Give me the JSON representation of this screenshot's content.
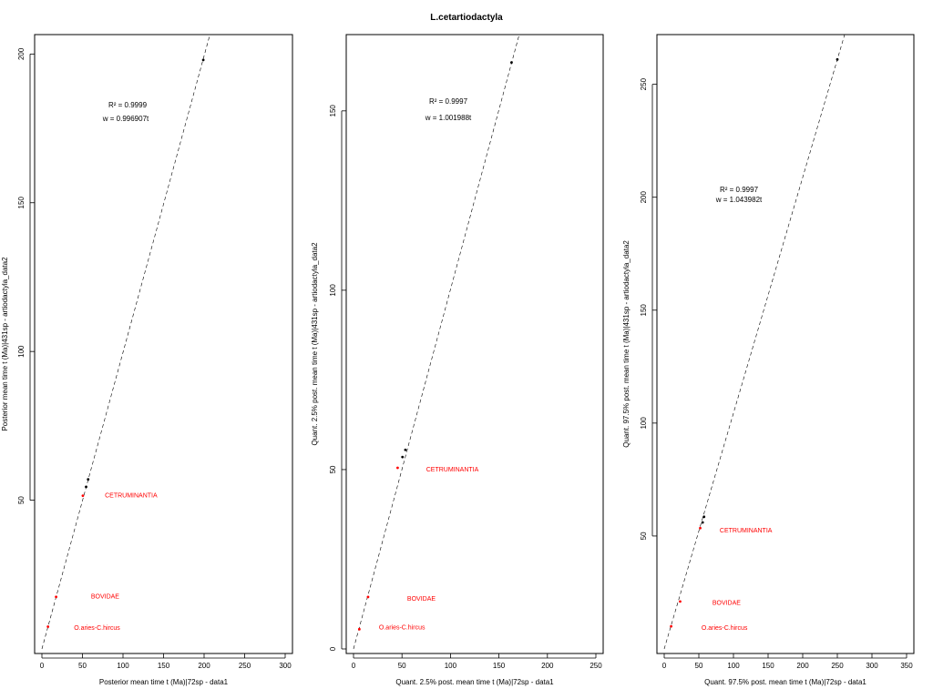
{
  "title": "L.cetartiodactyla",
  "chart_data": [
    {
      "type": "scatter",
      "xlabel": "Posterior mean time t (Ma)|72sp - data1",
      "ylabel": "Posterior mean time t (Ma)|431sp - artiodactyla_data2",
      "xlim": [
        0,
        300
      ],
      "ylim": [
        0,
        205
      ],
      "x_ticks": [
        0,
        50,
        100,
        150,
        200,
        250,
        300
      ],
      "y_ticks": [
        50,
        100,
        150,
        200
      ],
      "r2_label": "R² = 0.9999",
      "w_label": "w = 0.996907t",
      "slope": 0.996907,
      "points": [
        {
          "x": 7.5,
          "y": 7.5,
          "color": "#ff0000"
        },
        {
          "x": 17.5,
          "y": 17.5,
          "color": "#ff0000"
        },
        {
          "x": 50.5,
          "y": 51.5,
          "color": "#ff0000"
        },
        {
          "x": 54.5,
          "y": 54.5,
          "color": "#000000"
        },
        {
          "x": 57.0,
          "y": 57.0,
          "color": "#000000"
        },
        {
          "x": 199.0,
          "y": 198.0,
          "color": "#000000"
        }
      ],
      "annotations": [
        {
          "text": "CETRUMINANTIA",
          "x": 110,
          "y": 51,
          "color": "#ff0000"
        },
        {
          "text": "BOVIDAE",
          "x": 78,
          "y": 17,
          "color": "#ff0000"
        },
        {
          "text": "O.aries-C.hircus",
          "x": 68,
          "y": 6.5,
          "color": "#ff0000"
        }
      ]
    },
    {
      "type": "scatter",
      "xlabel": "Quant. 2.5% post. mean time t (Ma)|72sp - data1",
      "ylabel": "Quant. 2.5% post. mean time t (Ma)|431sp - artiodactyla_data2",
      "xlim": [
        0,
        250
      ],
      "ylim": [
        0,
        170
      ],
      "x_ticks": [
        0,
        50,
        100,
        150,
        200,
        250
      ],
      "y_ticks": [
        0,
        50,
        100,
        150
      ],
      "r2_label": "R² = 0.9997",
      "w_label": "w = 1.001988t",
      "slope": 1.001988,
      "points": [
        {
          "x": 6.0,
          "y": 5.5,
          "color": "#ff0000"
        },
        {
          "x": 15.0,
          "y": 14.5,
          "color": "#ff0000"
        },
        {
          "x": 45.5,
          "y": 50.5,
          "color": "#ff0000"
        },
        {
          "x": 50.5,
          "y": 53.5,
          "color": "#000000"
        },
        {
          "x": 53.5,
          "y": 55.5,
          "color": "#000000"
        },
        {
          "x": 163.0,
          "y": 163.5,
          "color": "#000000"
        }
      ],
      "annotations": [
        {
          "text": "CETRUMINANTIA",
          "x": 102,
          "y": 49.5,
          "color": "#ff0000"
        },
        {
          "text": "BOVIDAE",
          "x": 70,
          "y": 13.5,
          "color": "#ff0000"
        },
        {
          "text": "O.aries-C.hircus",
          "x": 50,
          "y": 5.5,
          "color": "#ff0000"
        }
      ]
    },
    {
      "type": "scatter",
      "xlabel": "Quant. 97.5% post. mean time t (Ma)|72sp - data1",
      "ylabel": "Quant. 97.5% post. mean time t (Ma)|431sp - artiodactyla_data2",
      "xlim": [
        0,
        350
      ],
      "ylim": [
        0,
        270
      ],
      "x_ticks": [
        0,
        50,
        100,
        150,
        200,
        250,
        300,
        350
      ],
      "y_ticks": [
        50,
        100,
        150,
        200,
        250
      ],
      "r2_label": "R² = 0.9997",
      "w_label": "w = 1.043982t",
      "slope": 1.043982,
      "points": [
        {
          "x": 10.0,
          "y": 10.0,
          "color": "#ff0000"
        },
        {
          "x": 23.0,
          "y": 21.0,
          "color": "#ff0000"
        },
        {
          "x": 52.0,
          "y": 53.5,
          "color": "#ff0000"
        },
        {
          "x": 55.5,
          "y": 56.0,
          "color": "#000000"
        },
        {
          "x": 57.5,
          "y": 58.5,
          "color": "#000000"
        },
        {
          "x": 250.0,
          "y": 261.0,
          "color": "#000000"
        }
      ],
      "annotations": [
        {
          "text": "CETRUMINANTIA",
          "x": 118,
          "y": 51.5,
          "color": "#ff0000"
        },
        {
          "text": "BOVIDAE",
          "x": 90,
          "y": 19.5,
          "color": "#ff0000"
        },
        {
          "text": "O.aries-C.hircus",
          "x": 87,
          "y": 8.5,
          "color": "#ff0000"
        }
      ]
    }
  ]
}
